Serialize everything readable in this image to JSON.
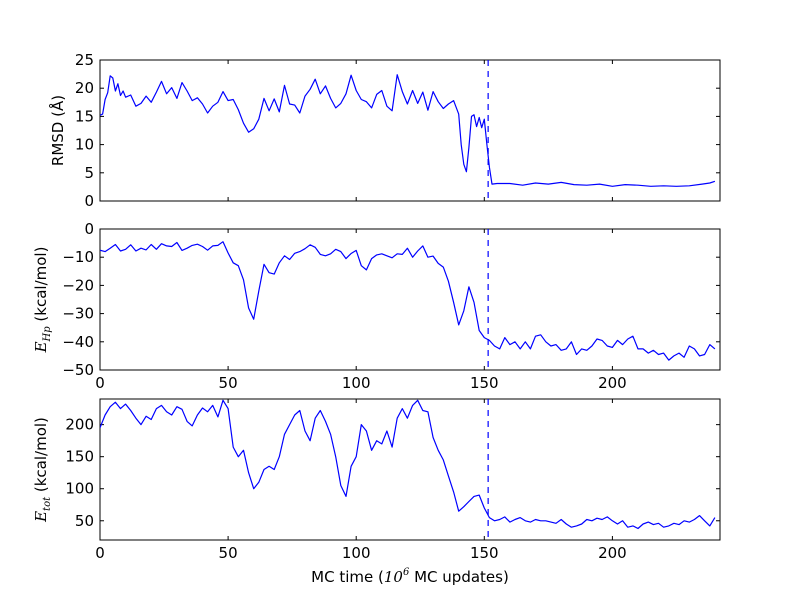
{
  "figure": {
    "xlabel_prefix": "MC time (",
    "xlabel_base": "10",
    "xlabel_exp": "6",
    "xlabel_suffix": "  MC updates)",
    "x_ticks": [
      "0",
      "50",
      "100",
      "150",
      "200"
    ],
    "line_color": "#0000ff"
  },
  "chart_data": [
    {
      "type": "line",
      "ylabel": "RMSD (Å)",
      "xlim": [
        0,
        242
      ],
      "ylim": [
        0,
        25
      ],
      "y_ticks": [
        "0",
        "5",
        "10",
        "15",
        "20",
        "25"
      ],
      "show_x_tick_labels": false,
      "vline_x": 151.5,
      "x": [
        0,
        1,
        2,
        3,
        4,
        5,
        6,
        7,
        8,
        9,
        10,
        12,
        14,
        16,
        18,
        20,
        22,
        24,
        26,
        28,
        30,
        32,
        34,
        36,
        38,
        40,
        42,
        44,
        46,
        48,
        50,
        52,
        54,
        56,
        58,
        60,
        62,
        64,
        66,
        68,
        70,
        72,
        74,
        76,
        78,
        80,
        82,
        84,
        86,
        88,
        90,
        92,
        94,
        96,
        98,
        100,
        102,
        104,
        106,
        108,
        110,
        112,
        114,
        116,
        118,
        120,
        122,
        124,
        126,
        128,
        130,
        132,
        134,
        136,
        138,
        140,
        141,
        142,
        143,
        144,
        145,
        146,
        147,
        148,
        149,
        150,
        151,
        152,
        153,
        155,
        160,
        165,
        170,
        175,
        180,
        185,
        190,
        195,
        200,
        205,
        210,
        215,
        220,
        225,
        230,
        235,
        238,
        240
      ],
      "y": [
        15.2,
        15.4,
        18.0,
        19.2,
        22.2,
        21.8,
        19.5,
        20.8,
        18.7,
        19.5,
        18.4,
        18.8,
        16.8,
        17.3,
        18.6,
        17.5,
        19.3,
        21.2,
        19.0,
        20.1,
        18.2,
        21.0,
        19.5,
        17.8,
        18.3,
        17.2,
        15.6,
        16.8,
        17.5,
        19.4,
        17.8,
        18.0,
        16.2,
        13.8,
        12.2,
        12.8,
        14.5,
        18.2,
        16.0,
        18.1,
        15.8,
        20.5,
        17.2,
        17.0,
        15.6,
        18.6,
        19.8,
        21.6,
        19.0,
        20.4,
        18.2,
        16.5,
        17.3,
        19.0,
        22.3,
        19.6,
        18.0,
        17.6,
        16.5,
        18.9,
        19.6,
        16.8,
        16.0,
        22.4,
        19.4,
        17.2,
        19.6,
        17.3,
        19.3,
        16.1,
        19.4,
        17.6,
        16.4,
        17.2,
        17.8,
        15.4,
        10.0,
        6.5,
        5.2,
        9.5,
        15.0,
        15.3,
        13.2,
        14.8,
        13.0,
        14.5,
        10.0,
        6.0,
        3.0,
        3.1,
        3.1,
        2.8,
        3.2,
        3.0,
        3.3,
        2.9,
        2.8,
        3.0,
        2.6,
        2.9,
        2.8,
        2.6,
        2.7,
        2.6,
        2.7,
        3.0,
        3.2,
        3.5
      ]
    },
    {
      "type": "line",
      "ylabel_main": "E",
      "ylabel_sub": "Hp",
      "ylabel_rest": " (kcal/mol)",
      "xlim": [
        0,
        242
      ],
      "ylim": [
        -50,
        0
      ],
      "y_ticks": [
        "−50",
        "−40",
        "−30",
        "−20",
        "−10",
        "0"
      ],
      "show_x_tick_labels": true,
      "vline_x": 151.5,
      "x": [
        0,
        2,
        4,
        6,
        8,
        10,
        12,
        14,
        16,
        18,
        20,
        22,
        24,
        26,
        28,
        30,
        32,
        34,
        36,
        38,
        40,
        42,
        44,
        46,
        48,
        50,
        52,
        54,
        56,
        58,
        60,
        62,
        64,
        66,
        68,
        70,
        72,
        74,
        76,
        78,
        80,
        82,
        84,
        86,
        88,
        90,
        92,
        94,
        96,
        98,
        100,
        102,
        104,
        106,
        108,
        110,
        112,
        114,
        116,
        118,
        120,
        122,
        124,
        126,
        128,
        130,
        132,
        134,
        136,
        138,
        140,
        142,
        144,
        146,
        148,
        150,
        152,
        154,
        156,
        158,
        160,
        162,
        164,
        166,
        168,
        170,
        172,
        174,
        176,
        178,
        180,
        182,
        184,
        186,
        188,
        190,
        192,
        194,
        196,
        198,
        200,
        202,
        204,
        206,
        208,
        210,
        212,
        214,
        216,
        218,
        220,
        222,
        224,
        226,
        228,
        230,
        232,
        234,
        236,
        238,
        240
      ],
      "y": [
        -7.5,
        -8.0,
        -6.8,
        -5.5,
        -7.8,
        -7.2,
        -5.6,
        -7.8,
        -6.8,
        -7.4,
        -5.5,
        -7.2,
        -5.2,
        -6.0,
        -6.2,
        -4.8,
        -7.6,
        -6.8,
        -5.8,
        -5.4,
        -6.2,
        -7.5,
        -6.0,
        -5.8,
        -4.5,
        -8.5,
        -12.0,
        -13.0,
        -18.0,
        -28.0,
        -32.0,
        -22.0,
        -12.5,
        -15.5,
        -16.0,
        -12.0,
        -9.5,
        -10.8,
        -8.6,
        -8.0,
        -7.0,
        -5.6,
        -6.5,
        -9.0,
        -9.5,
        -8.8,
        -7.2,
        -8.0,
        -10.5,
        -8.7,
        -7.6,
        -13.0,
        -14.5,
        -10.5,
        -9.2,
        -8.8,
        -9.5,
        -10.2,
        -8.8,
        -9.0,
        -6.8,
        -10.0,
        -7.8,
        -6.0,
        -10.0,
        -9.6,
        -12.2,
        -13.5,
        -18.5,
        -26.0,
        -34.0,
        -29.0,
        -20.5,
        -26.0,
        -36.0,
        -38.5,
        -39.5,
        -41.5,
        -42.5,
        -38.5,
        -41.0,
        -40.0,
        -42.5,
        -40.0,
        -42.5,
        -38.0,
        -37.5,
        -40.0,
        -41.5,
        -41.0,
        -43.0,
        -42.5,
        -40.0,
        -44.5,
        -42.5,
        -43.0,
        -41.5,
        -39.0,
        -39.5,
        -41.5,
        -42.0,
        -39.5,
        -41.0,
        -39.0,
        -38.0,
        -42.5,
        -42.5,
        -44.0,
        -43.0,
        -44.5,
        -44.0,
        -46.5,
        -45.0,
        -44.0,
        -45.5,
        -41.5,
        -42.5,
        -45.0,
        -44.5,
        -41.0,
        -42.5
      ]
    },
    {
      "type": "line",
      "ylabel_main": "E",
      "ylabel_sub": "tot",
      "ylabel_rest": " (kcal/mol)",
      "xlim": [
        0,
        242
      ],
      "ylim": [
        20,
        240
      ],
      "y_ticks": [
        "50",
        "100",
        "150",
        "200"
      ],
      "y_tick_values": [
        50,
        100,
        150,
        200
      ],
      "show_x_tick_labels": true,
      "vline_x": 151.5,
      "x": [
        0,
        2,
        4,
        6,
        8,
        10,
        12,
        14,
        16,
        18,
        20,
        22,
        24,
        26,
        28,
        30,
        32,
        34,
        36,
        38,
        40,
        42,
        44,
        46,
        48,
        50,
        52,
        54,
        56,
        58,
        60,
        62,
        64,
        66,
        68,
        70,
        72,
        74,
        76,
        78,
        80,
        82,
        84,
        86,
        88,
        90,
        92,
        94,
        96,
        98,
        100,
        102,
        104,
        106,
        108,
        110,
        112,
        114,
        116,
        118,
        120,
        122,
        124,
        126,
        128,
        130,
        132,
        134,
        136,
        138,
        140,
        142,
        144,
        146,
        148,
        150,
        152,
        154,
        156,
        158,
        160,
        162,
        164,
        166,
        168,
        170,
        172,
        174,
        176,
        178,
        180,
        182,
        184,
        186,
        188,
        190,
        192,
        194,
        196,
        198,
        200,
        202,
        204,
        206,
        208,
        210,
        212,
        214,
        216,
        218,
        220,
        222,
        224,
        226,
        228,
        230,
        232,
        234,
        236,
        238,
        240
      ],
      "y": [
        195,
        215,
        228,
        235,
        225,
        232,
        222,
        210,
        200,
        213,
        208,
        225,
        230,
        220,
        215,
        228,
        224,
        205,
        198,
        215,
        226,
        220,
        230,
        212,
        238,
        225,
        165,
        150,
        160,
        125,
        100,
        110,
        130,
        135,
        130,
        150,
        185,
        200,
        215,
        222,
        190,
        175,
        210,
        222,
        205,
        185,
        150,
        105,
        88,
        135,
        150,
        200,
        190,
        160,
        175,
        170,
        190,
        165,
        210,
        225,
        210,
        230,
        238,
        222,
        220,
        180,
        160,
        145,
        120,
        95,
        65,
        72,
        80,
        88,
        90,
        70,
        55,
        50,
        52,
        56,
        48,
        52,
        55,
        50,
        48,
        52,
        50,
        50,
        48,
        46,
        52,
        45,
        40,
        42,
        45,
        52,
        50,
        54,
        52,
        56,
        50,
        45,
        50,
        40,
        42,
        38,
        45,
        48,
        44,
        46,
        40,
        42,
        46,
        44,
        50,
        48,
        52,
        58,
        50,
        42,
        55
      ]
    }
  ]
}
